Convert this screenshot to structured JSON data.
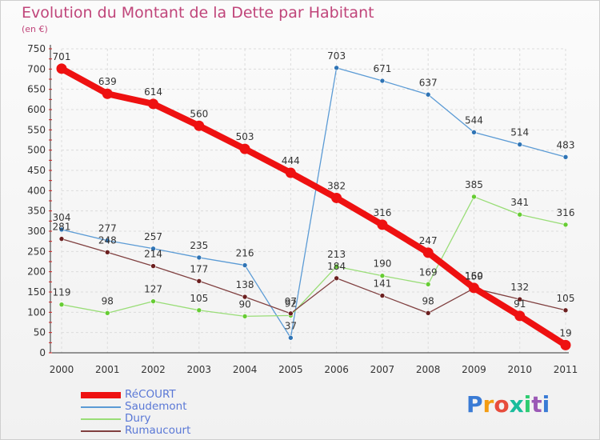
{
  "header": {
    "title": "Evolution du Montant de la Dette par Habitant",
    "unit": "(en €)"
  },
  "logo": {
    "text": "Proxiti",
    "letter_colors": [
      "#3a7bd5",
      "#f39c12",
      "#e74c3c",
      "#1abc9c",
      "#2ecc71",
      "#9b59b6",
      "#3a7bd5"
    ]
  },
  "chart_data": {
    "type": "line",
    "title": "Evolution du Montant de la Dette par Habitant",
    "subtitle": "(en €)",
    "xlabel": "",
    "ylabel": "",
    "x": [
      2000,
      2001,
      2002,
      2003,
      2004,
      2005,
      2006,
      2007,
      2008,
      2009,
      2010,
      2011
    ],
    "ylim": [
      0,
      750
    ],
    "yticks": [
      0,
      50,
      100,
      150,
      200,
      250,
      300,
      350,
      400,
      450,
      500,
      550,
      600,
      650,
      700,
      750
    ],
    "grid": true,
    "legend_position": "bottom-left",
    "series": [
      {
        "name": "Saudemont",
        "color": "#5b9bd5",
        "marker": "#2f74b5",
        "values": [
          304,
          277,
          257,
          235,
          216,
          37,
          703,
          671,
          637,
          544,
          514,
          483
        ],
        "thick": false
      },
      {
        "name": "Dury",
        "color": "#99dd77",
        "marker": "#66cc33",
        "values": [
          119,
          98,
          127,
          105,
          90,
          92,
          213,
          190,
          169,
          385,
          341,
          316
        ],
        "thick": false
      },
      {
        "name": "Rumaucourt",
        "color": "#804040",
        "marker": "#6b1f1f",
        "values": [
          281,
          248,
          214,
          177,
          138,
          97,
          184,
          141,
          98,
          159,
          132,
          105
        ],
        "thick": false
      },
      {
        "name": "RéCOURT",
        "color": "#ee1111",
        "marker": "#ee1111",
        "values": [
          701,
          639,
          614,
          560,
          503,
          444,
          382,
          316,
          247,
          160,
          91,
          19
        ],
        "thick": true
      }
    ],
    "legend_order": [
      "RéCOURT",
      "Saudemont",
      "Dury",
      "Rumaucourt"
    ]
  }
}
